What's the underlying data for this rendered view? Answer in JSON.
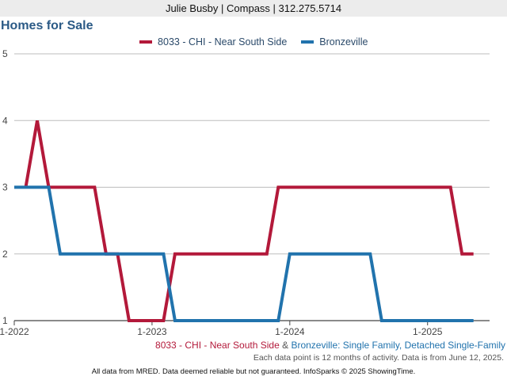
{
  "header": {
    "agent_line": "Julie Busby | Compass | 312.275.5714"
  },
  "chart_data": {
    "type": "line",
    "title": "Homes for Sale",
    "xlabel": "",
    "ylabel": "",
    "ylim": [
      1,
      5
    ],
    "yticks": [
      "1",
      "2",
      "3",
      "4",
      "5"
    ],
    "xticks": [
      {
        "label": "1-2022",
        "t": 0
      },
      {
        "label": "1-2023",
        "t": 12
      },
      {
        "label": "1-2024",
        "t": 24
      },
      {
        "label": "1-2025",
        "t": 36
      }
    ],
    "x_range": [
      0,
      41.4
    ],
    "grid": true,
    "legend_position": "top-center",
    "series": [
      {
        "name": "8033 - CHI - Near South Side",
        "color": "#b3193a",
        "points": [
          [
            0,
            3
          ],
          [
            1,
            3
          ],
          [
            2,
            4
          ],
          [
            3,
            3
          ],
          [
            4,
            3
          ],
          [
            5,
            3
          ],
          [
            6,
            3
          ],
          [
            7,
            3
          ],
          [
            8,
            2
          ],
          [
            9,
            2
          ],
          [
            10,
            1
          ],
          [
            11,
            1
          ],
          [
            12,
            1
          ],
          [
            13,
            1
          ],
          [
            14,
            2
          ],
          [
            15,
            2
          ],
          [
            16,
            2
          ],
          [
            17,
            2
          ],
          [
            18,
            2
          ],
          [
            19,
            2
          ],
          [
            20,
            2
          ],
          [
            21,
            2
          ],
          [
            22,
            2
          ],
          [
            23,
            3
          ],
          [
            24,
            3
          ],
          [
            25,
            3
          ],
          [
            26,
            3
          ],
          [
            27,
            3
          ],
          [
            28,
            3
          ],
          [
            29,
            3
          ],
          [
            30,
            3
          ],
          [
            31,
            3
          ],
          [
            32,
            3
          ],
          [
            33,
            3
          ],
          [
            34,
            3
          ],
          [
            35,
            3
          ],
          [
            36,
            3
          ],
          [
            37,
            3
          ],
          [
            38,
            3
          ],
          [
            39,
            2
          ],
          [
            40,
            2
          ]
        ]
      },
      {
        "name": "Bronzeville",
        "color": "#2173ad",
        "points": [
          [
            0,
            3
          ],
          [
            1,
            3
          ],
          [
            2,
            3
          ],
          [
            3,
            3
          ],
          [
            4,
            2
          ],
          [
            5,
            2
          ],
          [
            6,
            2
          ],
          [
            7,
            2
          ],
          [
            8,
            2
          ],
          [
            9,
            2
          ],
          [
            10,
            2
          ],
          [
            11,
            2
          ],
          [
            12,
            2
          ],
          [
            13,
            2
          ],
          [
            14,
            1
          ],
          [
            15,
            1
          ],
          [
            16,
            1
          ],
          [
            17,
            1
          ],
          [
            18,
            1
          ],
          [
            19,
            1
          ],
          [
            20,
            1
          ],
          [
            21,
            1
          ],
          [
            22,
            1
          ],
          [
            23,
            1
          ],
          [
            24,
            2
          ],
          [
            25,
            2
          ],
          [
            26,
            2
          ],
          [
            27,
            2
          ],
          [
            28,
            2
          ],
          [
            29,
            2
          ],
          [
            30,
            2
          ],
          [
            31,
            2
          ],
          [
            32,
            1
          ],
          [
            33,
            1
          ],
          [
            34,
            1
          ],
          [
            35,
            1
          ],
          [
            36,
            1
          ],
          [
            37,
            1
          ],
          [
            38,
            1
          ],
          [
            39,
            1
          ],
          [
            40,
            1
          ]
        ]
      }
    ],
    "subtitle": {
      "part1": "8033 - CHI - Near South Side",
      "amp": " & ",
      "part2": "Bronzeville: Single Family, Detached Single-Family"
    },
    "footnote": "Each data point is 12 months of activity. Data is from June 12, 2025.",
    "source": "All data from MRED. Data deemed reliable but not guaranteed. InfoSparks © 2025 ShowingTime."
  }
}
